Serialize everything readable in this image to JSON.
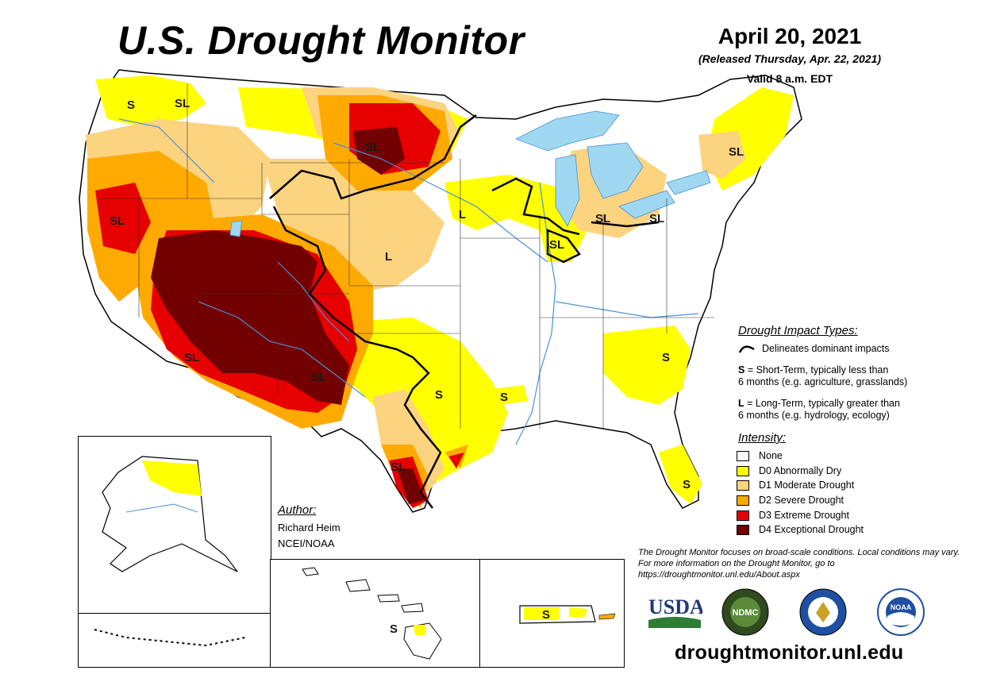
{
  "header": {
    "title": "U.S. Drought Monitor",
    "date": "April 20, 2021",
    "released": "(Released Thursday, Apr. 22, 2021)",
    "valid": "Valid 8 a.m. EDT"
  },
  "impact_types": {
    "title": "Drought Impact Types:",
    "delineates": "Delineates dominant impacts",
    "short_term": {
      "key": "S",
      "text": "= Short-Term, typically less than",
      "text2": "6 months (e.g. agriculture, grasslands)"
    },
    "long_term": {
      "key": "L",
      "text": "= Long-Term, typically greater than",
      "text2": "6 months (e.g. hydrology, ecology)"
    }
  },
  "intensity": {
    "title": "Intensity:",
    "items": [
      {
        "label": "None",
        "color": "#ffffff"
      },
      {
        "label": "D0 Abnormally Dry",
        "color": "#ffff00"
      },
      {
        "label": "D1 Moderate Drought",
        "color": "#fcd37f"
      },
      {
        "label": "D2 Severe Drought",
        "color": "#ffaa00"
      },
      {
        "label": "D3 Extreme Drought",
        "color": "#e60000"
      },
      {
        "label": "D4 Exceptional Drought",
        "color": "#730000"
      }
    ]
  },
  "author": {
    "title": "Author:",
    "name": "Richard Heim",
    "org": "NCEI/NOAA"
  },
  "note": "The Drought Monitor focuses on broad-scale conditions. Local conditions may vary. For more information on the Drought Monitor, go to https://droughtmonitor.unl.edu/About.aspx",
  "website": "droughtmonitor.unl.edu",
  "logos": {
    "usda": "USDA",
    "ndmc": "NDMC",
    "noaa": "NOAA"
  },
  "map_labels": {
    "s": "S",
    "sl": "SL",
    "l": "L"
  },
  "colors": {
    "water": "#9fd8f0",
    "river": "#4a90d9",
    "border": "#000000"
  }
}
